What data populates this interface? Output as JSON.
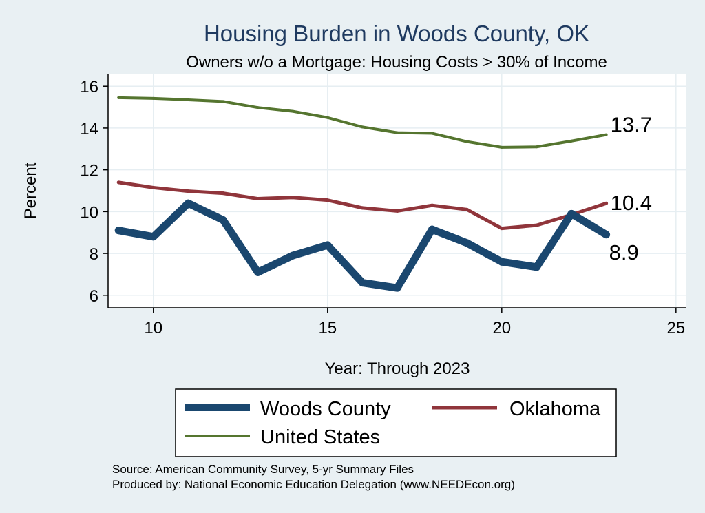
{
  "chart_data": {
    "type": "line",
    "title": "Housing Burden in Woods County, OK",
    "subtitle": "Owners w/o a Mortgage: Housing Costs > 30% of Income",
    "xlabel": "Year: Through 2023",
    "ylabel": "Percent",
    "xlim": [
      8.7,
      25.3
    ],
    "ylim": [
      5.4,
      16.6
    ],
    "xticks": [
      10,
      15,
      20,
      25
    ],
    "yticks": [
      6,
      8,
      10,
      12,
      14,
      16
    ],
    "grid": true,
    "legend_position": "bottom",
    "x": [
      9,
      10,
      11,
      12,
      13,
      14,
      15,
      16,
      17,
      18,
      19,
      20,
      21,
      22,
      23
    ],
    "series": [
      {
        "name": "Woods County",
        "color": "#1a476f",
        "values": [
          9.1,
          8.8,
          10.4,
          9.6,
          7.1,
          7.9,
          8.4,
          6.6,
          6.35,
          9.15,
          8.5,
          7.6,
          7.35,
          9.9,
          8.9
        ],
        "end_label": "8.9"
      },
      {
        "name": "Oklahoma",
        "color": "#90353b",
        "values": [
          11.4,
          11.15,
          10.98,
          10.88,
          10.62,
          10.68,
          10.55,
          10.18,
          10.03,
          10.3,
          10.1,
          9.2,
          9.35,
          9.85,
          10.4
        ],
        "end_label": "10.4"
      },
      {
        "name": "United States",
        "color": "#55752f",
        "values": [
          15.45,
          15.42,
          15.35,
          15.27,
          14.98,
          14.8,
          14.5,
          14.05,
          13.78,
          13.75,
          13.35,
          13.08,
          13.1,
          13.38,
          13.68
        ],
        "end_label": "13.7"
      }
    ],
    "source_lines": [
      "Source: American Community Survey, 5-yr Summary Files",
      "Produced by: National Economic Education Delegation (www.NEEDEcon.org)"
    ]
  }
}
